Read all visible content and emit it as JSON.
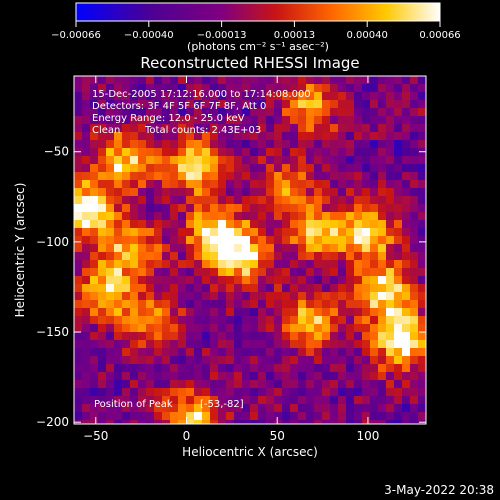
{
  "chart_data": {
    "type": "heatmap",
    "title": "Reconstructed RHESSI Image",
    "xlabel": "Heliocentric X (arcsec)",
    "ylabel": "Heliocentric Y (arcsec)",
    "xlim": [
      -62,
      132
    ],
    "ylim": [
      -201,
      -8
    ],
    "xticks": [
      -50,
      0,
      50,
      100
    ],
    "yticks": [
      -50,
      -100,
      -150,
      -200
    ],
    "xtick_labels": [
      "−50",
      "0",
      "50",
      "100"
    ],
    "ytick_labels": [
      "−50",
      "−100",
      "−150",
      "−200"
    ],
    "colorbar": {
      "min": -0.00066,
      "max": 0.00066,
      "ticks": [
        "−0.00066",
        "−0.00040",
        "−0.00013",
        "0.00013",
        "0.00040",
        "0.00066"
      ],
      "units": "(photons cm⁻² s⁻¹ asec⁻²)",
      "colors": [
        "#0000ff",
        "#4b0096",
        "#800080",
        "#c81414",
        "#ff6400",
        "#ffc800",
        "#ffffff"
      ]
    },
    "annotations": [
      "15-Dec-2005 17:12:16.000 to 17:14:08.000",
      "Detectors: 3F 4F 5F 6F 7F 8F, Att 0",
      "Energy Range: 12.0 - 25.0 keV",
      "Clean",
      "Total counts: 2.43E+03"
    ],
    "peak_label": "Position of Peak",
    "peak_value": "[-53,-82]",
    "hotspots": [
      {
        "x": -55,
        "y": -82,
        "v": 1.0
      },
      {
        "x": -35,
        "y": -55,
        "v": 0.8
      },
      {
        "x": 5,
        "y": -58,
        "v": 0.85
      },
      {
        "x": 15,
        "y": -95,
        "v": 0.75
      },
      {
        "x": 30,
        "y": -108,
        "v": 0.9
      },
      {
        "x": 72,
        "y": -95,
        "v": 0.7
      },
      {
        "x": 100,
        "y": -95,
        "v": 0.85
      },
      {
        "x": 110,
        "y": -128,
        "v": 0.8
      },
      {
        "x": 118,
        "y": -155,
        "v": 0.95
      },
      {
        "x": 68,
        "y": -145,
        "v": 0.7
      },
      {
        "x": -20,
        "y": -145,
        "v": 0.55
      },
      {
        "x": -45,
        "y": -128,
        "v": 0.7
      },
      {
        "x": -30,
        "y": -105,
        "v": 0.7
      },
      {
        "x": 55,
        "y": -70,
        "v": 0.5
      },
      {
        "x": 68,
        "y": -25,
        "v": 0.6
      },
      {
        "x": 2,
        "y": -198,
        "v": 0.8
      }
    ]
  },
  "footer": {
    "date": "3-May-2022 20:38"
  }
}
